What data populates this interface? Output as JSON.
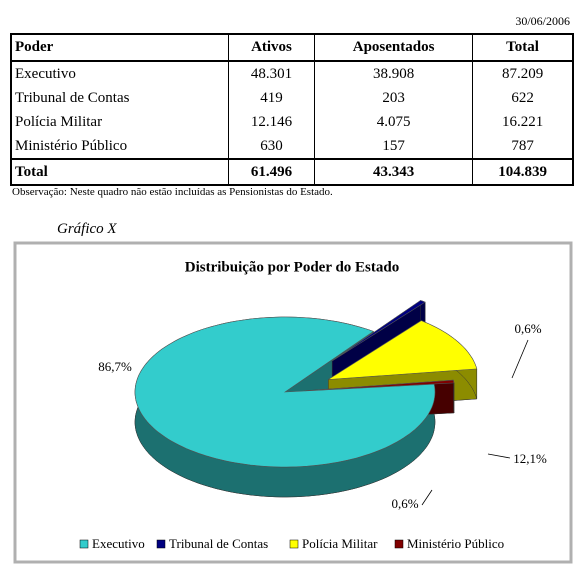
{
  "date": "30/06/2006",
  "table": {
    "header": [
      "Poder",
      "Ativos",
      "Aposentados",
      "Total"
    ],
    "rows": [
      [
        "Executivo",
        "48.301",
        "38.908",
        "87.209"
      ],
      [
        "Tribunal de Contas",
        "419",
        "203",
        "622"
      ],
      [
        "Polícia Militar",
        "12.146",
        "4.075",
        "16.221"
      ],
      [
        "Ministério Público",
        "630",
        "157",
        "787"
      ]
    ],
    "total": [
      "Total",
      "61.496",
      "43.343",
      "104.839"
    ]
  },
  "note": "Observação: Neste quadro não estão incluídas as Pensionistas do Estado.",
  "caption": "Gráfico X",
  "chart_data": {
    "type": "pie",
    "title": "Distribuição por Poder do Estado",
    "categories": [
      "Executivo",
      "Tribunal de Contas",
      "Polícia Militar",
      "Ministério Público"
    ],
    "values": [
      86.7,
      0.6,
      12.1,
      0.6
    ],
    "value_labels": [
      "86,7%",
      "0,6%",
      "12,1%",
      "0,6%"
    ],
    "colors": [
      "#33cccc",
      "#000080",
      "#ffff00",
      "#800000"
    ],
    "legend": "bottom"
  }
}
